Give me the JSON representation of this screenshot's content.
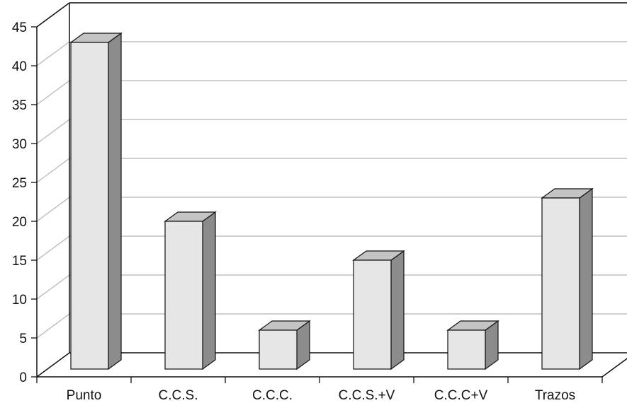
{
  "chart_data": {
    "type": "bar",
    "style": "3d-column",
    "categories": [
      "Punto",
      "C.C.S.",
      "C.C.C.",
      "C.C.S.+V",
      "C.C.C+V",
      "Trazos"
    ],
    "values": [
      42,
      19,
      5,
      14,
      5,
      22
    ],
    "yticks": [
      "0",
      "5",
      "10",
      "15",
      "20",
      "25",
      "30",
      "35",
      "40",
      "45"
    ],
    "ylim": [
      0,
      45
    ],
    "title": "",
    "xlabel": "",
    "ylabel": "",
    "grid": true,
    "legend": "none",
    "colors": {
      "bar_front": "#e6e6e6",
      "bar_top": "#c4c4c4",
      "bar_side": "#8c8c8c",
      "grid": "#b5b5b5",
      "axis": "#111111"
    }
  }
}
